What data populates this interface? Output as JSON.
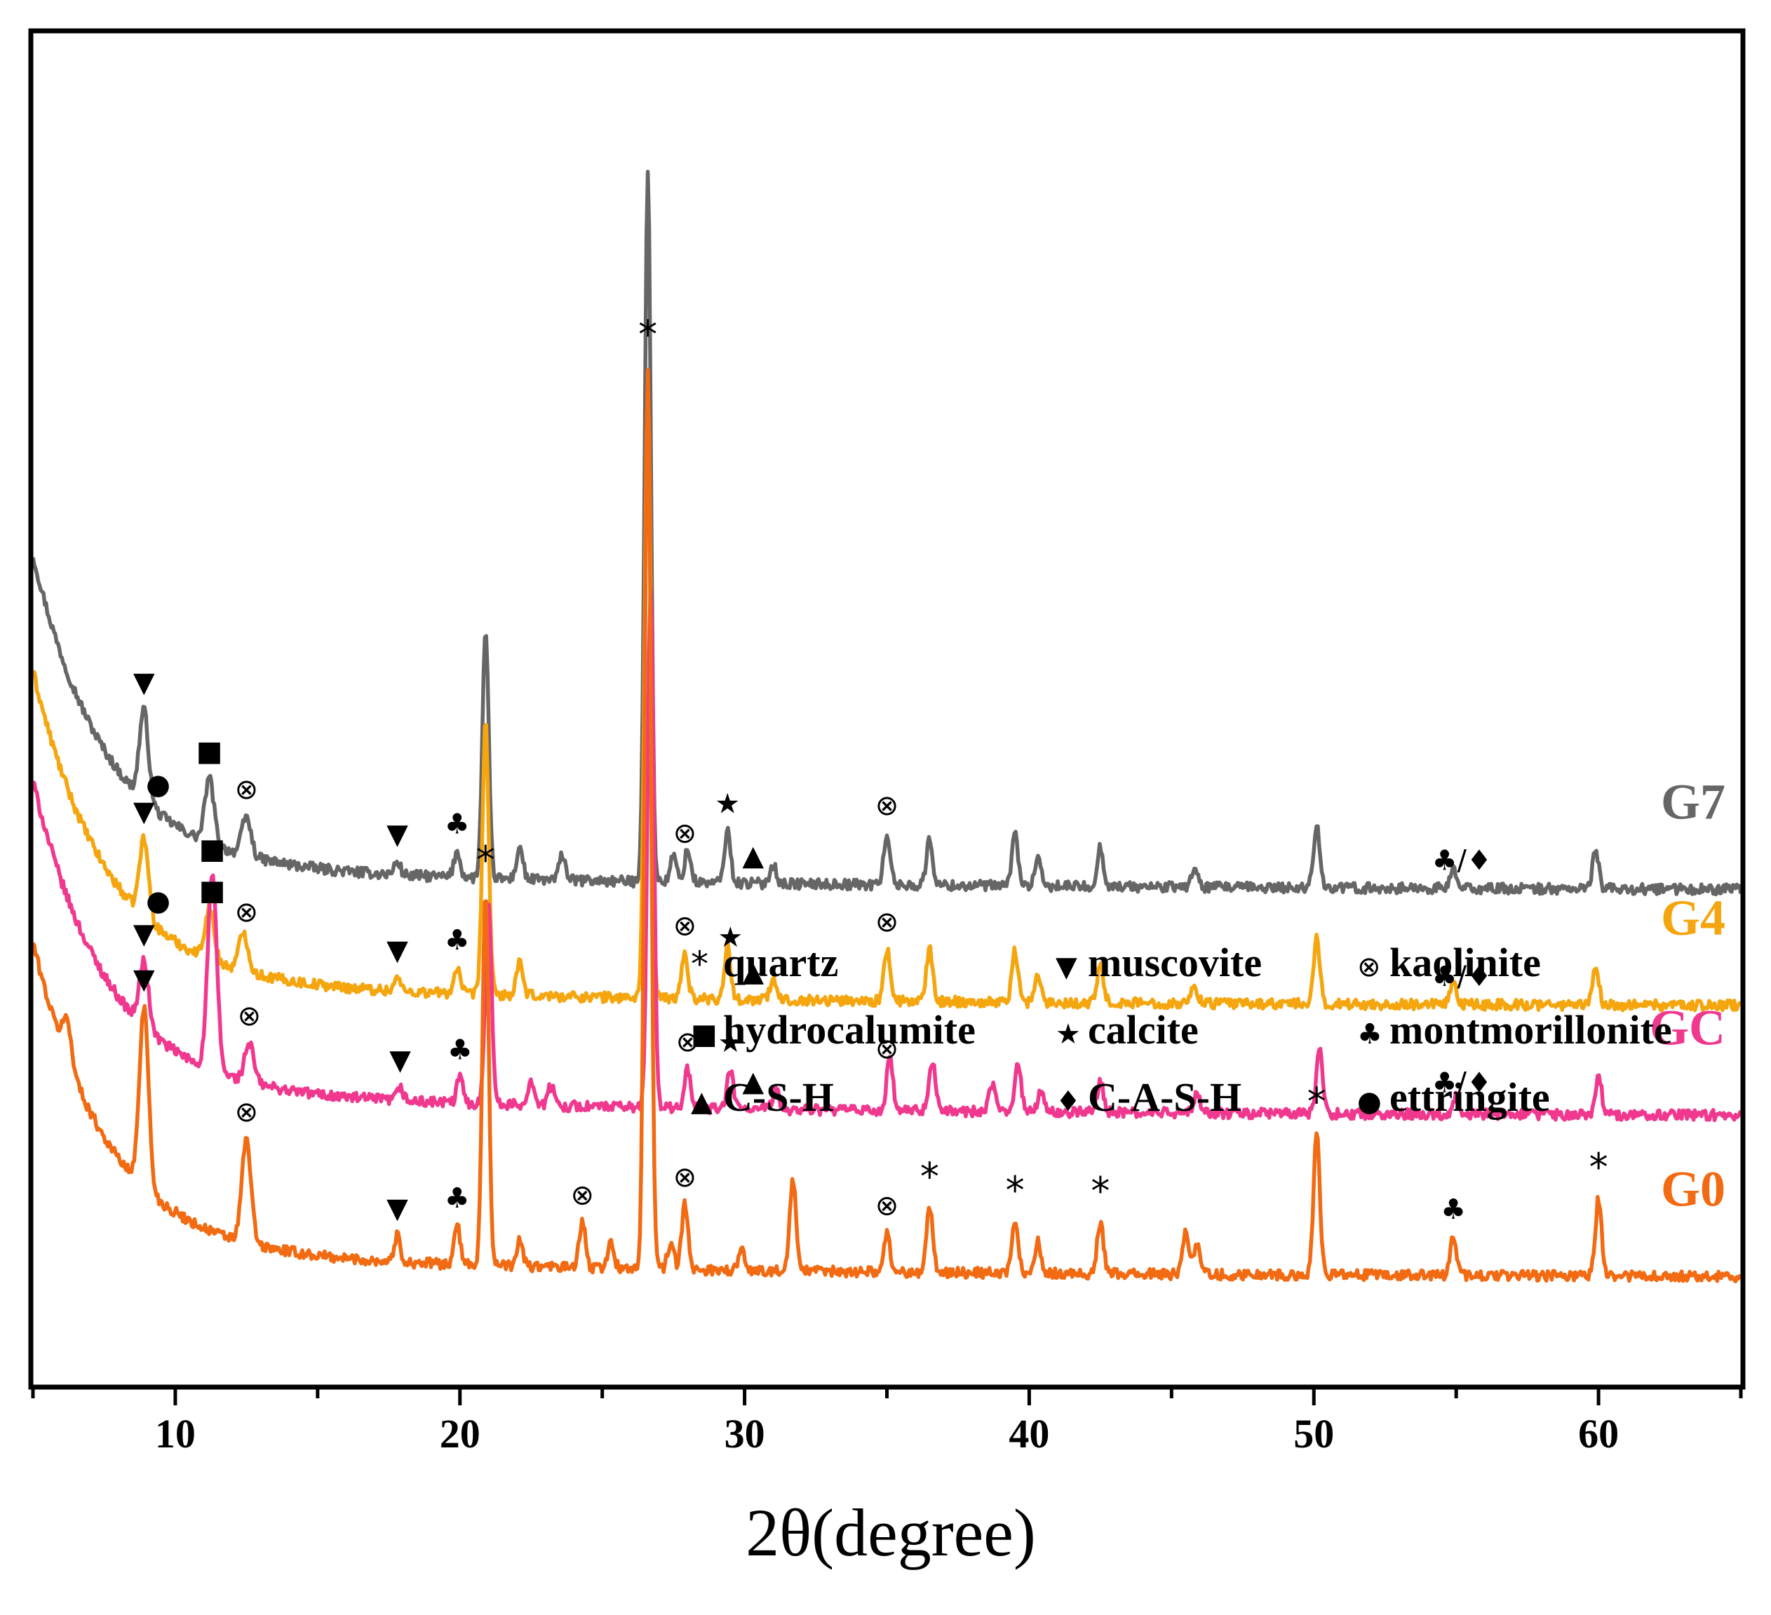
{
  "chart_data": {
    "type": "line",
    "title": "",
    "xlabel": "2θ(degree)",
    "ylabel": "",
    "xlim": [
      5,
      65
    ],
    "xticks": [
      10,
      20,
      30,
      40,
      50,
      60
    ],
    "yticks_shown": false,
    "series_offset_order": [
      "G0",
      "GC",
      "G4",
      "G7"
    ],
    "series": [
      {
        "name": "G7",
        "color": "#666666",
        "baseline": 60,
        "start_bump": 48,
        "peaks": [
          [
            8.9,
            14
          ],
          [
            11.2,
            10
          ],
          [
            12.5,
            6
          ],
          [
            17.8,
            2
          ],
          [
            19.9,
            4
          ],
          [
            20.9,
            38
          ],
          [
            22.1,
            5
          ],
          [
            23.6,
            4
          ],
          [
            26.6,
            110
          ],
          [
            27.5,
            4
          ],
          [
            28.0,
            5
          ],
          [
            29.4,
            8
          ],
          [
            31.0,
            3
          ],
          [
            35.0,
            8
          ],
          [
            36.5,
            7
          ],
          [
            39.5,
            8
          ],
          [
            40.3,
            4
          ],
          [
            42.5,
            6
          ],
          [
            45.8,
            3
          ],
          [
            50.1,
            10
          ],
          [
            54.9,
            3
          ],
          [
            59.9,
            6
          ]
        ],
        "markers": [
          {
            "symbol": "▼",
            "x": 8.9
          },
          {
            "symbol": "●",
            "x": 9.4
          },
          {
            "symbol": "■",
            "x": 11.2
          },
          {
            "symbol": "⊗",
            "x": 12.5
          },
          {
            "symbol": "▼",
            "x": 17.8
          },
          {
            "symbol": "♣",
            "x": 19.9
          },
          {
            "symbol": "⊗",
            "x": 27.9
          },
          {
            "symbol": "★",
            "x": 29.4
          },
          {
            "symbol": "▲",
            "x": 30.3
          },
          {
            "symbol": "⊗",
            "x": 35.0
          },
          {
            "symbol": "♣/♦",
            "x": 55.2
          }
        ]
      },
      {
        "name": "G4",
        "color": "#f5a60f",
        "baseline": 42,
        "start_bump": 48,
        "peaks": [
          [
            8.9,
            12
          ],
          [
            11.2,
            8
          ],
          [
            12.4,
            6
          ],
          [
            17.8,
            2
          ],
          [
            19.9,
            4
          ],
          [
            20.9,
            42
          ],
          [
            22.1,
            5
          ],
          [
            26.6,
            95
          ],
          [
            27.9,
            7
          ],
          [
            29.4,
            8
          ],
          [
            31.0,
            3
          ],
          [
            35.0,
            8
          ],
          [
            36.5,
            8
          ],
          [
            39.5,
            8
          ],
          [
            40.3,
            4
          ],
          [
            42.5,
            6
          ],
          [
            45.8,
            3
          ],
          [
            50.1,
            10
          ],
          [
            54.9,
            3
          ],
          [
            59.9,
            6
          ]
        ],
        "markers": [
          {
            "symbol": "▼",
            "x": 8.9
          },
          {
            "symbol": "●",
            "x": 9.4
          },
          {
            "symbol": "■",
            "x": 11.3
          },
          {
            "symbol": "⊗",
            "x": 12.5
          },
          {
            "symbol": "▼",
            "x": 17.8
          },
          {
            "symbol": "♣",
            "x": 19.9
          },
          {
            "symbol": "⊗",
            "x": 27.9
          },
          {
            "symbol": "★",
            "x": 29.5
          },
          {
            "symbol": "▲",
            "x": 30.3
          },
          {
            "symbol": "⊗",
            "x": 35.0
          },
          {
            "symbol": "♣/♦",
            "x": 55.2
          }
        ]
      },
      {
        "name": "GC",
        "color": "#f0388f",
        "baseline": 25,
        "start_bump": 48,
        "peaks": [
          [
            8.9,
            10
          ],
          [
            11.3,
            30
          ],
          [
            12.6,
            6
          ],
          [
            17.9,
            2
          ],
          [
            20.0,
            4
          ],
          [
            21.0,
            32
          ],
          [
            22.5,
            4
          ],
          [
            23.2,
            3
          ],
          [
            26.7,
            80
          ],
          [
            28.0,
            6
          ],
          [
            29.5,
            6
          ],
          [
            31.1,
            3
          ],
          [
            35.1,
            8
          ],
          [
            36.6,
            8
          ],
          [
            38.7,
            4
          ],
          [
            39.6,
            8
          ],
          [
            40.4,
            3
          ],
          [
            42.5,
            5
          ],
          [
            45.9,
            3
          ],
          [
            50.2,
            10
          ],
          [
            55.0,
            3
          ],
          [
            60.0,
            6
          ]
        ],
        "markers": [
          {
            "symbol": "▼",
            "x": 8.9
          },
          {
            "symbol": "■",
            "x": 11.3
          },
          {
            "symbol": "⊗",
            "x": 12.6
          },
          {
            "symbol": "▼",
            "x": 17.9
          },
          {
            "symbol": "♣",
            "x": 20.0
          },
          {
            "symbol": "⊗",
            "x": 28.0
          },
          {
            "symbol": "★",
            "x": 29.5
          },
          {
            "symbol": "▲",
            "x": 30.3
          },
          {
            "symbol": "⊗",
            "x": 35.0
          },
          {
            "symbol": "♣/♦",
            "x": 55.2
          }
        ]
      },
      {
        "name": "G0",
        "color": "#f26a12",
        "baseline": 0,
        "start_bump": 48,
        "peaks": [
          [
            6.2,
            6
          ],
          [
            8.9,
            28
          ],
          [
            12.5,
            16
          ],
          [
            17.8,
            4
          ],
          [
            19.9,
            6
          ],
          [
            20.9,
            58
          ],
          [
            22.1,
            4
          ],
          [
            24.3,
            7
          ],
          [
            25.3,
            4
          ],
          [
            26.6,
            140
          ],
          [
            27.4,
            4
          ],
          [
            27.9,
            10
          ],
          [
            29.9,
            3
          ],
          [
            31.7,
            14
          ],
          [
            35.0,
            6
          ],
          [
            36.5,
            10
          ],
          [
            39.5,
            8
          ],
          [
            40.3,
            5
          ],
          [
            42.5,
            8
          ],
          [
            45.5,
            7
          ],
          [
            45.9,
            5
          ],
          [
            50.1,
            22
          ],
          [
            54.9,
            6
          ],
          [
            60.0,
            12
          ]
        ],
        "markers": [
          {
            "symbol": "▼",
            "x": 8.9
          },
          {
            "symbol": "⊗",
            "x": 12.5
          },
          {
            "symbol": "▼",
            "x": 17.8
          },
          {
            "symbol": "♣",
            "x": 19.9
          },
          {
            "symbol": "*",
            "x": 20.9
          },
          {
            "symbol": "⊗",
            "x": 24.3
          },
          {
            "symbol": "*",
            "x": 26.6
          },
          {
            "symbol": "⊗",
            "x": 27.9
          },
          {
            "symbol": "⊗",
            "x": 35.0
          },
          {
            "symbol": "*",
            "x": 36.5
          },
          {
            "symbol": "*",
            "x": 39.5
          },
          {
            "symbol": "*",
            "x": 42.5
          },
          {
            "symbol": "*",
            "x": 50.1
          },
          {
            "symbol": "♣",
            "x": 54.9
          },
          {
            "symbol": "*",
            "x": 60.0
          }
        ]
      }
    ],
    "legend": {
      "placement": "lower-center",
      "entries": [
        {
          "symbol": "*",
          "label": "quartz"
        },
        {
          "symbol": "▼",
          "label": "muscovite"
        },
        {
          "symbol": "⊗",
          "label": "kaolinite"
        },
        {
          "symbol": "■",
          "label": "hydrocalumite"
        },
        {
          "symbol": "★",
          "label": "calcite"
        },
        {
          "symbol": "♣",
          "label": "montmorillonite"
        },
        {
          "symbol": "▲",
          "label": "C-S-H"
        },
        {
          "symbol": "♦",
          "label": "C-A-S-H"
        },
        {
          "symbol": "●",
          "label": "ettringite"
        }
      ]
    }
  }
}
